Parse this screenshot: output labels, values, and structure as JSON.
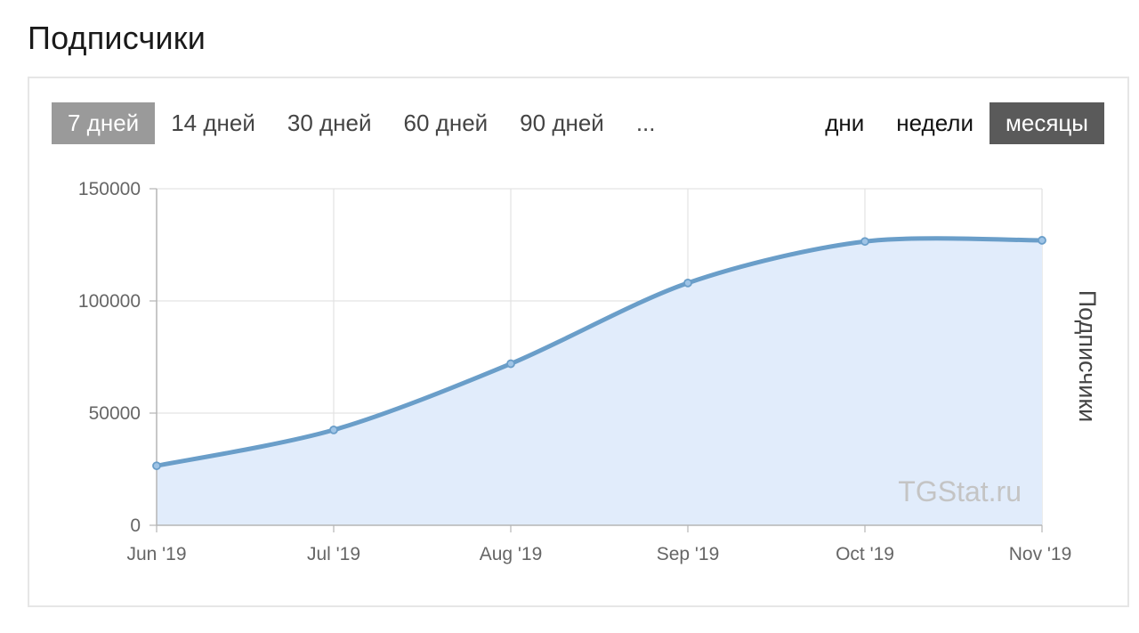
{
  "page": {
    "title": "Подписчики"
  },
  "range_tabs": [
    {
      "label": "7 дней",
      "active": true
    },
    {
      "label": "14 дней",
      "active": false
    },
    {
      "label": "30 дней",
      "active": false
    },
    {
      "label": "60 дней",
      "active": false
    },
    {
      "label": "90 дней",
      "active": false
    },
    {
      "label": "...",
      "active": false
    }
  ],
  "period_tabs": [
    {
      "label": "дни",
      "active": false
    },
    {
      "label": "недели",
      "active": false
    },
    {
      "label": "месяцы",
      "active": true
    }
  ],
  "watermark": "TGStat.ru",
  "chart_data": {
    "type": "area",
    "title": "",
    "xlabel": "",
    "ylabel": "Подписчики",
    "categories": [
      "Jun '19",
      "Jul '19",
      "Aug '19",
      "Sep '19",
      "Oct '19",
      "Nov '19"
    ],
    "series": [
      {
        "values": [
          26500,
          42500,
          72000,
          108000,
          126500,
          127000
        ]
      }
    ],
    "ylim": [
      0,
      150000
    ],
    "yticks": [
      0,
      50000,
      100000,
      150000
    ],
    "grid": true,
    "legend": "none",
    "colors": {
      "line": "#6a9ec9",
      "fill": "#e1ecfb",
      "point_fill": "#9fc4e6",
      "grid": "#e3e3e3",
      "axis": "#b5b5b5"
    }
  }
}
